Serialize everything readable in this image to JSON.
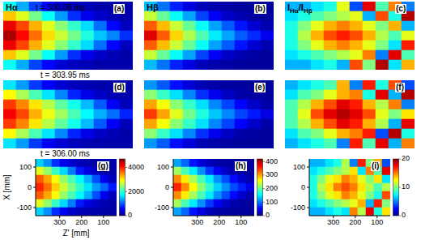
{
  "columns": [
    {
      "title": [
        {
          "text": "Hα"
        }
      ],
      "colorbar": {
        "range": [
          0,
          4700
        ],
        "ticks": [
          0,
          2000,
          4000
        ]
      }
    },
    {
      "title": [
        {
          "text": "Hβ"
        }
      ],
      "colorbar": {
        "range": [
          0,
          420
        ],
        "ticks": [
          0,
          100,
          200,
          300,
          400
        ]
      }
    },
    {
      "title": [
        {
          "text": "I"
        },
        {
          "text": "Hα",
          "sub": true
        },
        {
          "text": "/I"
        },
        {
          "text": "Hβ",
          "sub": true
        }
      ],
      "colorbar": {
        "range": [
          0,
          20
        ],
        "ticks": [
          0,
          10,
          20
        ]
      }
    }
  ],
  "rows": [
    "t = 300.00 ms",
    "t = 303.95 ms",
    "t = 306.00 ms"
  ],
  "chart_data": [
    {
      "type": "heatmap",
      "title": "(a)",
      "tick_labels": false,
      "xlim": [
        410,
        40
      ],
      "ylim": [
        -140,
        140
      ],
      "x": [
        391.5,
        354.5,
        317.5,
        280.5,
        243.5,
        206.5,
        169.5,
        132.5,
        95.5,
        58.5
      ],
      "y": [
        120,
        80,
        40,
        0,
        -40,
        -80,
        -120
      ],
      "cells": [
        [
          1800,
          1400,
          900,
          600,
          400,
          300,
          250,
          200,
          200,
          200
        ],
        [
          3200,
          2800,
          2300,
          1800,
          1300,
          800,
          500,
          350,
          250,
          200
        ],
        [
          4200,
          3800,
          3300,
          2800,
          2400,
          2000,
          1600,
          1100,
          600,
          300
        ],
        [
          4500,
          4100,
          3600,
          3100,
          2700,
          2300,
          1900,
          1500,
          1200,
          800
        ],
        [
          4200,
          3800,
          3300,
          2800,
          2400,
          2000,
          1600,
          1100,
          600,
          300
        ],
        [
          3200,
          2800,
          2300,
          1800,
          1300,
          800,
          500,
          350,
          250,
          200
        ],
        [
          1800,
          1400,
          900,
          600,
          400,
          300,
          250,
          200,
          200,
          200
        ]
      ]
    },
    {
      "type": "heatmap",
      "title": "(b)",
      "tick_labels": false,
      "xlim": [
        410,
        40
      ],
      "ylim": [
        -140,
        140
      ],
      "x": [
        391.5,
        354.5,
        317.5,
        280.5,
        243.5,
        206.5,
        169.5,
        132.5,
        95.5,
        58.5
      ],
      "y": [
        120,
        80,
        40,
        0,
        -40,
        -80,
        -120
      ],
      "cells": [
        [
          130,
          100,
          65,
          40,
          25,
          18,
          15,
          12,
          12,
          12
        ],
        [
          240,
          200,
          160,
          120,
          80,
          50,
          30,
          20,
          15,
          12
        ],
        [
          330,
          290,
          240,
          200,
          160,
          120,
          90,
          60,
          35,
          20
        ],
        [
          380,
          330,
          280,
          230,
          190,
          150,
          120,
          90,
          70,
          45
        ],
        [
          330,
          290,
          240,
          200,
          160,
          120,
          90,
          60,
          35,
          20
        ],
        [
          240,
          200,
          160,
          120,
          80,
          50,
          30,
          20,
          15,
          12
        ],
        [
          130,
          100,
          65,
          40,
          25,
          18,
          15,
          12,
          12,
          12
        ]
      ]
    },
    {
      "type": "heatmap",
      "title": "(c)",
      "tick_labels": false,
      "xlim": [
        410,
        40
      ],
      "ylim": [
        -140,
        140
      ],
      "x": [
        391.5,
        354.5,
        317.5,
        280.5,
        243.5,
        206.5,
        169.5,
        132.5,
        95.5,
        58.5
      ],
      "y": [
        120,
        80,
        40,
        0,
        -40,
        -80,
        -120
      ],
      "cells": [
        [
          6,
          6,
          7,
          8,
          12,
          4,
          18,
          9,
          15,
          5
        ],
        [
          7,
          8,
          9,
          10,
          11,
          12,
          6,
          16,
          8,
          19
        ],
        [
          8,
          10,
          12,
          14,
          15,
          14,
          12,
          10,
          14,
          6
        ],
        [
          8,
          11,
          14,
          16,
          17,
          16,
          14,
          11,
          9,
          12
        ],
        [
          8,
          10,
          12,
          14,
          15,
          14,
          12,
          10,
          7,
          17
        ],
        [
          7,
          8,
          9,
          10,
          11,
          12,
          15,
          5,
          18,
          9
        ],
        [
          6,
          6,
          7,
          8,
          6,
          16,
          10,
          19,
          7,
          14
        ]
      ]
    },
    {
      "type": "heatmap",
      "title": "(d)",
      "tick_labels": false,
      "xlim": [
        410,
        40
      ],
      "ylim": [
        -140,
        140
      ],
      "x": [
        391.5,
        354.5,
        317.5,
        280.5,
        243.5,
        206.5,
        169.5,
        132.5,
        95.5,
        58.5
      ],
      "y": [
        120,
        80,
        40,
        0,
        -40,
        -80,
        -120
      ],
      "cells": [
        [
          1650,
          1300,
          850,
          550,
          380,
          280,
          230,
          200,
          200,
          200
        ],
        [
          2950,
          2550,
          2100,
          1650,
          1200,
          750,
          480,
          330,
          240,
          200
        ],
        [
          3850,
          3500,
          3050,
          2600,
          2200,
          1850,
          1450,
          1000,
          550,
          280
        ],
        [
          4150,
          3800,
          3300,
          2850,
          2500,
          2100,
          1750,
          1400,
          1100,
          750
        ],
        [
          3850,
          3500,
          3050,
          2600,
          2200,
          1850,
          1450,
          1000,
          550,
          280
        ],
        [
          2950,
          2550,
          2100,
          1650,
          1200,
          750,
          480,
          330,
          240,
          200
        ],
        [
          1650,
          1300,
          850,
          550,
          380,
          280,
          230,
          200,
          200,
          200
        ]
      ]
    },
    {
      "type": "heatmap",
      "title": "(e)",
      "tick_labels": false,
      "xlim": [
        410,
        40
      ],
      "ylim": [
        -140,
        140
      ],
      "x": [
        391.5,
        354.5,
        317.5,
        280.5,
        243.5,
        206.5,
        169.5,
        132.5,
        95.5,
        58.5
      ],
      "y": [
        120,
        80,
        40,
        0,
        -40,
        -80,
        -120
      ],
      "cells": [
        [
          115,
          90,
          58,
          36,
          22,
          16,
          14,
          12,
          12,
          12
        ],
        [
          215,
          180,
          145,
          108,
          72,
          45,
          28,
          18,
          14,
          12
        ],
        [
          300,
          260,
          215,
          180,
          145,
          108,
          80,
          52,
          30,
          18
        ],
        [
          345,
          300,
          250,
          205,
          170,
          135,
          108,
          80,
          62,
          40
        ],
        [
          300,
          260,
          215,
          180,
          145,
          108,
          80,
          52,
          30,
          18
        ],
        [
          215,
          180,
          145,
          108,
          72,
          45,
          28,
          18,
          14,
          12
        ],
        [
          115,
          90,
          58,
          36,
          22,
          16,
          14,
          12,
          12,
          12
        ]
      ]
    },
    {
      "type": "heatmap",
      "title": "(f)",
      "tick_labels": false,
      "xlim": [
        410,
        40
      ],
      "ylim": [
        -140,
        140
      ],
      "x": [
        391.5,
        354.5,
        317.5,
        280.5,
        243.5,
        206.5,
        169.5,
        132.5,
        95.5,
        58.5
      ],
      "y": [
        120,
        80,
        40,
        0,
        -40,
        -80,
        -120
      ],
      "cells": [
        [
          6,
          7,
          8,
          9,
          14,
          5,
          17,
          8,
          16,
          4
        ],
        [
          7,
          9,
          10,
          12,
          14,
          15,
          8,
          18,
          6,
          19
        ],
        [
          9,
          11,
          14,
          16,
          18,
          17,
          14,
          11,
          15,
          5
        ],
        [
          9,
          12,
          16,
          18,
          19,
          18,
          16,
          12,
          10,
          13
        ],
        [
          9,
          11,
          14,
          16,
          18,
          17,
          14,
          11,
          6,
          18
        ],
        [
          7,
          9,
          10,
          12,
          14,
          15,
          17,
          4,
          19,
          8
        ],
        [
          6,
          7,
          8,
          9,
          5,
          17,
          9,
          18,
          6,
          15
        ]
      ]
    },
    {
      "type": "heatmap",
      "title": "(g)",
      "xlabel": "Z' [mm]",
      "ylabel": "X [mm]",
      "xlim": [
        410,
        40
      ],
      "ylim": [
        -140,
        140
      ],
      "xticks": [
        300,
        200,
        100
      ],
      "yticks": [
        100,
        0,
        -100
      ],
      "x": [
        391.5,
        354.5,
        317.5,
        280.5,
        243.5,
        206.5,
        169.5,
        132.5,
        95.5,
        58.5
      ],
      "y": [
        120,
        80,
        40,
        0,
        -40,
        -80,
        -120
      ],
      "cells": [
        [
          1550,
          1250,
          800,
          520,
          360,
          270,
          220,
          190,
          190,
          190
        ],
        [
          2800,
          2450,
          2000,
          1580,
          1150,
          700,
          450,
          320,
          230,
          190
        ],
        [
          3700,
          3350,
          2900,
          2450,
          2100,
          1750,
          1400,
          950,
          520,
          270
        ],
        [
          3950,
          3600,
          3150,
          2700,
          2350,
          2000,
          1650,
          1300,
          1050,
          700
        ],
        [
          3700,
          3350,
          2900,
          2450,
          2100,
          1750,
          1400,
          950,
          520,
          270
        ],
        [
          2800,
          2450,
          2000,
          1580,
          1150,
          700,
          450,
          320,
          230,
          190
        ],
        [
          1550,
          1250,
          800,
          520,
          360,
          270,
          220,
          190,
          190,
          190
        ]
      ]
    },
    {
      "type": "heatmap",
      "title": "(h)",
      "xlim": [
        410,
        40
      ],
      "ylim": [
        -140,
        140
      ],
      "xticks": [
        300,
        200,
        100
      ],
      "yticks": [
        100,
        0,
        -100
      ],
      "x": [
        391.5,
        354.5,
        317.5,
        280.5,
        243.5,
        206.5,
        169.5,
        132.5,
        95.5,
        58.5
      ],
      "y": [
        120,
        80,
        40,
        0,
        -40,
        -80,
        -120
      ],
      "cells": [
        [
          120,
          95,
          60,
          38,
          24,
          17,
          14,
          12,
          12,
          12
        ],
        [
          225,
          188,
          150,
          112,
          75,
          47,
          29,
          19,
          14,
          12
        ],
        [
          310,
          270,
          225,
          188,
          150,
          112,
          84,
          56,
          32,
          19
        ],
        [
          355,
          310,
          262,
          215,
          178,
          140,
          112,
          84,
          65,
          42
        ],
        [
          310,
          270,
          225,
          188,
          150,
          112,
          84,
          56,
          32,
          19
        ],
        [
          225,
          188,
          150,
          112,
          75,
          47,
          29,
          19,
          14,
          12
        ],
        [
          120,
          95,
          60,
          38,
          24,
          17,
          14,
          12,
          12,
          12
        ]
      ]
    },
    {
      "type": "heatmap",
      "title": "(i)",
      "xlim": [
        410,
        40
      ],
      "ylim": [
        -140,
        140
      ],
      "xticks": [
        300,
        200,
        100
      ],
      "yticks": [
        100,
        0,
        -100
      ],
      "x": [
        391.5,
        354.5,
        317.5,
        280.5,
        243.5,
        206.5,
        169.5,
        132.5,
        95.5,
        58.5
      ],
      "y": [
        120,
        80,
        40,
        0,
        -40,
        -80,
        -120
      ],
      "cells": [
        [
          6,
          6,
          7,
          8,
          11,
          5,
          17,
          10,
          14,
          4
        ],
        [
          7,
          8,
          9,
          10,
          11,
          13,
          7,
          15,
          9,
          18
        ],
        [
          8,
          10,
          12,
          13,
          15,
          14,
          12,
          10,
          13,
          7
        ],
        [
          8,
          11,
          13,
          15,
          16,
          15,
          13,
          11,
          9,
          11
        ],
        [
          8,
          10,
          12,
          13,
          15,
          14,
          12,
          10,
          8,
          16
        ],
        [
          7,
          8,
          9,
          10,
          11,
          12,
          14,
          6,
          17,
          10
        ],
        [
          6,
          6,
          7,
          8,
          7,
          15,
          11,
          18,
          8,
          13
        ]
      ]
    }
  ]
}
